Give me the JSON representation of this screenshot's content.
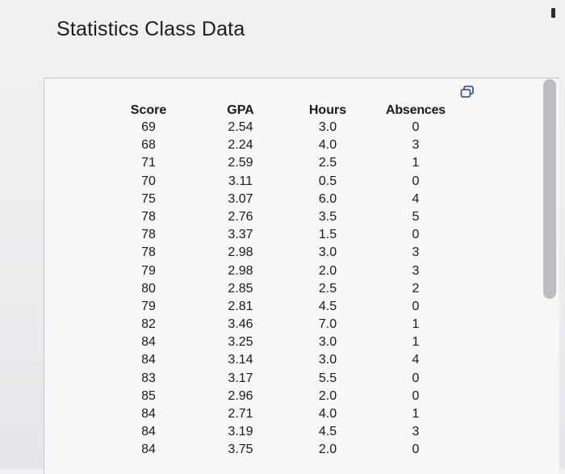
{
  "page": {
    "title": "Statistics Class Data"
  },
  "table": {
    "columns": [
      "Score",
      "GPA",
      "Hours",
      "Absences"
    ],
    "rows": [
      [
        "69",
        "2.54",
        "3.0",
        "0"
      ],
      [
        "68",
        "2.24",
        "4.0",
        "3"
      ],
      [
        "71",
        "2.59",
        "2.5",
        "1"
      ],
      [
        "70",
        "3.11",
        "0.5",
        "0"
      ],
      [
        "75",
        "3.07",
        "6.0",
        "4"
      ],
      [
        "78",
        "2.76",
        "3.5",
        "5"
      ],
      [
        "78",
        "3.37",
        "1.5",
        "0"
      ],
      [
        "78",
        "2.98",
        "3.0",
        "3"
      ],
      [
        "79",
        "2.98",
        "2.0",
        "3"
      ],
      [
        "80",
        "2.85",
        "2.5",
        "2"
      ],
      [
        "79",
        "2.81",
        "4.5",
        "0"
      ],
      [
        "82",
        "3.46",
        "7.0",
        "1"
      ],
      [
        "84",
        "3.25",
        "3.0",
        "1"
      ],
      [
        "84",
        "3.14",
        "3.0",
        "4"
      ],
      [
        "83",
        "3.17",
        "5.5",
        "0"
      ],
      [
        "85",
        "2.96",
        "2.0",
        "0"
      ],
      [
        "84",
        "2.71",
        "4.0",
        "1"
      ],
      [
        "84",
        "3.19",
        "4.5",
        "3"
      ],
      [
        "84",
        "3.75",
        "2.0",
        "0"
      ]
    ]
  },
  "icons": {
    "copy": "copy-icon",
    "minimize": "minimize-icon"
  }
}
